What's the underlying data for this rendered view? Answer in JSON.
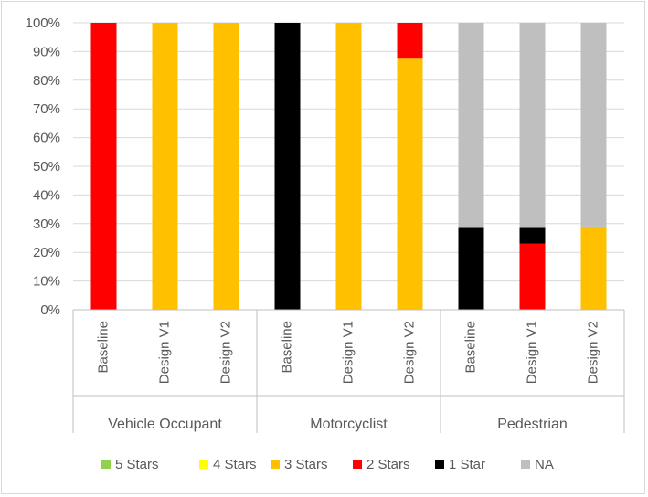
{
  "chart_data": {
    "type": "bar",
    "stacked": true,
    "percent": true,
    "groups": [
      "Vehicle Occupant",
      "Motorcyclist",
      "Pedestrian"
    ],
    "categories": [
      [
        "Vehicle Occupant",
        "Baseline"
      ],
      [
        "Vehicle Occupant",
        "Design V1"
      ],
      [
        "Vehicle Occupant",
        "Design V2"
      ],
      [
        "Motorcyclist",
        "Baseline"
      ],
      [
        "Motorcyclist",
        "Design V1"
      ],
      [
        "Motorcyclist",
        "Design V2"
      ],
      [
        "Pedestrian",
        "Baseline"
      ],
      [
        "Pedestrian",
        "Design V1"
      ],
      [
        "Pedestrian",
        "Design V2"
      ]
    ],
    "category_labels": [
      "Baseline",
      "Design V1",
      "Design V2",
      "Baseline",
      "Design V1",
      "Design V2",
      "Baseline",
      "Design V1",
      "Design V2"
    ],
    "series": [
      {
        "name": "5 Stars",
        "color": "#92d050",
        "values": [
          0,
          0,
          0,
          0,
          0,
          0,
          0,
          0,
          0
        ]
      },
      {
        "name": "4 Stars",
        "color": "#ffff00",
        "values": [
          0,
          0,
          0,
          0,
          0,
          0,
          0,
          0,
          0
        ]
      },
      {
        "name": "3 Stars",
        "color": "#ffc000",
        "values": [
          0,
          100,
          100,
          0,
          100,
          87.5,
          0,
          0,
          29
        ]
      },
      {
        "name": "2 Stars",
        "color": "#ff0000",
        "values": [
          100,
          0,
          0,
          0,
          0,
          12.5,
          0,
          23,
          0
        ]
      },
      {
        "name": "1 Star",
        "color": "#000000",
        "values": [
          0,
          0,
          0,
          100,
          0,
          0,
          28.5,
          5.5,
          0
        ]
      },
      {
        "name": "NA",
        "color": "#bfbfbf",
        "values": [
          0,
          0,
          0,
          0,
          0,
          0,
          71.5,
          71.5,
          71
        ]
      }
    ],
    "y_ticks": [
      "0%",
      "10%",
      "20%",
      "30%",
      "40%",
      "50%",
      "60%",
      "70%",
      "80%",
      "90%",
      "100%"
    ],
    "ylim": [
      0,
      100
    ],
    "grid": true,
    "legend_position": "bottom",
    "title": "",
    "xlabel": "",
    "ylabel": ""
  }
}
